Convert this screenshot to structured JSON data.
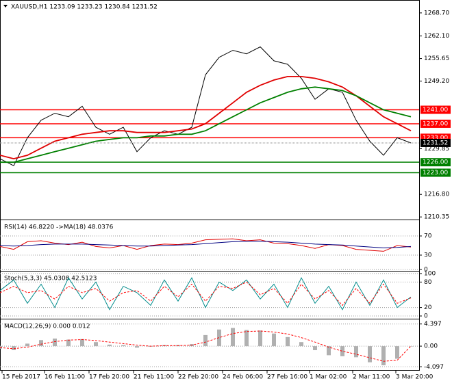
{
  "chart_data": [
    {
      "type": "line",
      "title": "XAUUSD,H1  1233.09 1233.23 1230.84 1231.52",
      "x": [
        0,
        20,
        40,
        60,
        80,
        100,
        120,
        140,
        160,
        180,
        200,
        220,
        240,
        260,
        280,
        300,
        320,
        340,
        360,
        380,
        400,
        420,
        440,
        460,
        480,
        500,
        520,
        540,
        560,
        580,
        600
      ],
      "xlim": [
        0,
        612
      ],
      "ylim": [
        1209.8,
        1272.0
      ],
      "yticks": [
        {
          "value": 1268.7,
          "label": "1268.70"
        },
        {
          "value": 1262.1,
          "label": "1262.10"
        },
        {
          "value": 1255.65,
          "label": "1255.65"
        },
        {
          "value": 1249.2,
          "label": "1249.20"
        },
        {
          "value": 1229.85,
          "label": "1229.85"
        },
        {
          "value": 1216.8,
          "label": "1216.80"
        },
        {
          "value": 1210.35,
          "label": "1210.35"
        }
      ],
      "series": [
        {
          "color": "#000000",
          "values": [
            1227,
            1225,
            1233,
            1238,
            1240,
            1239,
            1242,
            1236,
            1234,
            1236,
            1229,
            1233,
            1235,
            1234,
            1236,
            1251,
            1256,
            1258,
            1257,
            1259,
            1255,
            1254,
            1250,
            1244,
            1247,
            1246,
            1238,
            1232,
            1228,
            1233,
            1231.52
          ]
        },
        {
          "color": "#e00000",
          "values": [
            1228,
            1227,
            1228,
            1230,
            1232,
            1233,
            1234,
            1234.5,
            1235,
            1235,
            1234.5,
            1234.5,
            1234.5,
            1235,
            1235.5,
            1237,
            1240,
            1243,
            1246,
            1248,
            1249.5,
            1250.5,
            1250.5,
            1250,
            1249,
            1247.5,
            1245,
            1242,
            1239,
            1237,
            1235
          ]
        },
        {
          "color": "#008000",
          "values": [
            1226,
            1226,
            1227,
            1228,
            1229,
            1230,
            1231,
            1232,
            1232.5,
            1233,
            1233,
            1233.5,
            1233.5,
            1234,
            1234,
            1235,
            1237,
            1239,
            1241,
            1243,
            1244.5,
            1246,
            1247,
            1247.5,
            1247,
            1246.5,
            1245,
            1243,
            1241,
            1240,
            1239
          ]
        }
      ],
      "levels": [
        {
          "value": 1241.0,
          "label": "1241.00",
          "color": "#ff0000"
        },
        {
          "value": 1237.0,
          "label": "1237.00",
          "color": "#ff0000"
        },
        {
          "value": 1233.0,
          "label": "1233.00",
          "color": "#ff0000"
        },
        {
          "value": 1226.0,
          "label": "1226.00",
          "color": "#008000"
        },
        {
          "value": 1223.0,
          "label": "1223.00",
          "color": "#008000"
        }
      ],
      "current": {
        "value": 1231.52,
        "label": "1231.52"
      }
    },
    {
      "type": "line",
      "title": "RSI(14) 46.8220  ->MA(18) 48.0376",
      "ylim": [
        0,
        100
      ],
      "yticks": [
        70,
        30,
        0
      ],
      "series": [
        {
          "color": "#e00000",
          "values": [
            48,
            42,
            58,
            60,
            55,
            52,
            57,
            48,
            45,
            50,
            42,
            50,
            53,
            52,
            55,
            62,
            63,
            64,
            60,
            62,
            55,
            54,
            50,
            44,
            52,
            50,
            42,
            40,
            38,
            50,
            46.82
          ]
        },
        {
          "color": "#000080",
          "values": [
            50,
            49,
            50,
            52,
            53,
            53,
            53,
            52,
            51,
            50,
            49,
            49,
            50,
            51,
            52,
            54,
            56,
            58,
            59,
            59,
            58,
            57,
            55,
            53,
            52,
            51,
            49,
            47,
            45,
            46,
            48.04
          ]
        }
      ]
    },
    {
      "type": "line",
      "title": "Stoch(5,3,3) 45.0308 42.5123",
      "ylim": [
        0,
        100
      ],
      "yticks": [
        100,
        80,
        20,
        0
      ],
      "series": [
        {
          "color": "#008b8b",
          "values": [
            60,
            85,
            30,
            75,
            20,
            90,
            40,
            80,
            15,
            70,
            55,
            25,
            85,
            35,
            90,
            20,
            80,
            60,
            85,
            40,
            75,
            20,
            90,
            30,
            70,
            15,
            80,
            25,
            85,
            20,
            45.03
          ]
        },
        {
          "color": "#ff0000",
          "dash": true,
          "values": [
            55,
            70,
            55,
            60,
            40,
            70,
            55,
            65,
            35,
            55,
            60,
            35,
            70,
            45,
            75,
            35,
            70,
            65,
            80,
            50,
            65,
            30,
            75,
            40,
            60,
            25,
            65,
            30,
            75,
            30,
            42.51
          ]
        }
      ]
    },
    {
      "type": "macd",
      "title": "MACD(12,26,9) 0.000 0.012",
      "ylim": [
        -4.6,
        4.9
      ],
      "yticks": [
        4.397,
        {
          "value": 0,
          "label": "0.00"
        },
        -4.097
      ],
      "histogram": {
        "color": "#b0b0b0",
        "values": [
          -0.5,
          -0.8,
          0.5,
          1.2,
          1.5,
          1.3,
          1.4,
          0.8,
          0.3,
          0.2,
          -0.3,
          -0.1,
          0.2,
          0.2,
          0.4,
          2.2,
          3.3,
          3.6,
          3.2,
          3.1,
          2.5,
          1.8,
          0.8,
          -0.8,
          -1.8,
          -2.0,
          -2.2,
          -3.2,
          -3.8,
          -2.5,
          0.0
        ]
      },
      "series": [
        {
          "color": "#ff0000",
          "dash": true,
          "values": [
            -0.3,
            -0.5,
            -0.2,
            0.4,
            0.9,
            1.2,
            1.3,
            1.1,
            0.8,
            0.5,
            0.2,
            0.0,
            0.1,
            0.1,
            0.2,
            0.8,
            1.7,
            2.5,
            2.9,
            3.0,
            2.8,
            2.4,
            1.7,
            0.8,
            -0.2,
            -1.0,
            -1.6,
            -2.3,
            -3.0,
            -2.8,
            0.012
          ]
        }
      ],
      "xticks": [
        {
          "value": 3,
          "label": "15 Feb 2017"
        },
        {
          "value": 65,
          "label": "16 Feb 11:00"
        },
        {
          "value": 130,
          "label": "17 Feb 20:00"
        },
        {
          "value": 195,
          "label": "21 Feb 11:00"
        },
        {
          "value": 260,
          "label": "22 Feb 20:00"
        },
        {
          "value": 325,
          "label": "24 Feb 06:00"
        },
        {
          "value": 390,
          "label": "27 Feb 16:00"
        },
        {
          "value": 452,
          "label": "1 Mar 02:00"
        },
        {
          "value": 515,
          "label": "2 Mar 11:00"
        },
        {
          "value": 578,
          "label": "3 Mar 20:00"
        }
      ]
    }
  ]
}
